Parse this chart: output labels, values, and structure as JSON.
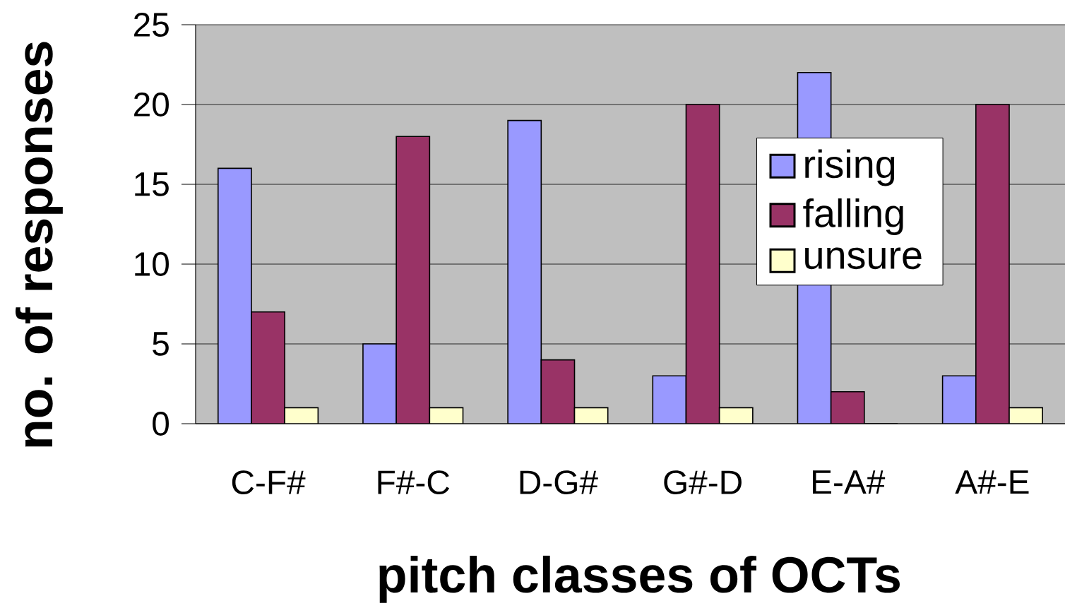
{
  "chart_data": {
    "type": "bar",
    "xlabel": "pitch classes of OCTs",
    "ylabel": "no. of responses",
    "categories": [
      "C-F#",
      "F#-C",
      "D-G#",
      "G#-D",
      "E-A#",
      "A#-E"
    ],
    "series": [
      {
        "name": "rising",
        "color": "#9999ff",
        "values": [
          16,
          5,
          19,
          3,
          22,
          3
        ]
      },
      {
        "name": "falling",
        "color": "#993366",
        "values": [
          7,
          18,
          4,
          20,
          2,
          20
        ]
      },
      {
        "name": "unsure",
        "color": "#ffffcc",
        "values": [
          1,
          1,
          1,
          1,
          0,
          1
        ]
      }
    ],
    "ylim": [
      0,
      25
    ],
    "yticks": [
      0,
      5,
      10,
      15,
      20,
      25
    ],
    "grid": "y",
    "legend": "right"
  }
}
